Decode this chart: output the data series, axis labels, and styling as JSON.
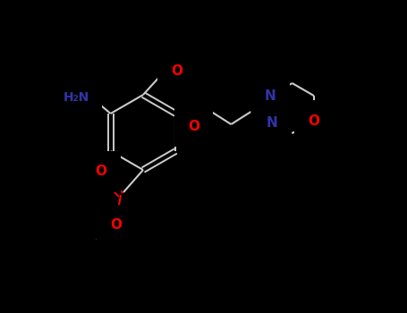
{
  "background_color": "#000000",
  "bond_color": "#cccccc",
  "atom_colors": {
    "O": "#ff0000",
    "N": "#3333aa",
    "C": "#cccccc"
  },
  "figsize": [
    4.55,
    3.5
  ],
  "dpi": 100,
  "lw": 1.5,
  "fontsize": 9
}
